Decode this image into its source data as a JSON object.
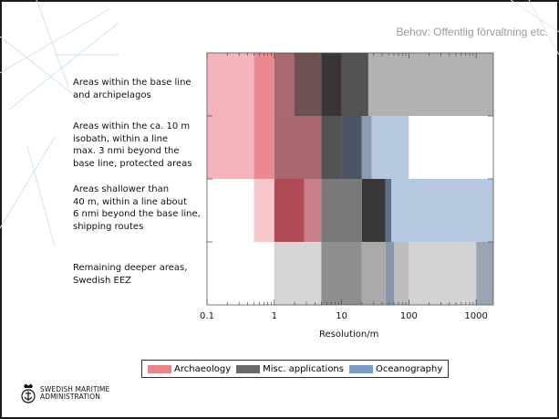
{
  "header": {
    "text": "Behov: Offentlig förvaltning etc."
  },
  "chart_data": {
    "type": "bar",
    "orientation": "horizontal-range",
    "x_scale": "log",
    "xlim": [
      0.1,
      1800
    ],
    "xlabel": "Resolution/m",
    "x_ticks": [
      0.1,
      1,
      10,
      100,
      1000
    ],
    "x_tick_labels": [
      "0.1",
      "1",
      "10",
      "100",
      "1000"
    ],
    "categories": [
      "Areas within the base line\nand archipelagos",
      "Areas within the ca. 10 m\nisobath, within a line\nmax. 3 nmi beyond the\nbase line, protected areas",
      "Areas shallower than\n40 m, within a line about\n6 nmi beyond the base line,\nshipping routes",
      "Remaining deeper areas,\nSwedish EEZ"
    ],
    "legend": [
      {
        "label": "Archaeology",
        "color": "#e8848c"
      },
      {
        "label": "Misc. applications",
        "color": "#6a6a6a"
      },
      {
        "label": "Oceanography",
        "color": "#7d9cc3"
      }
    ],
    "rows": [
      [
        {
          "from": 0.1,
          "to": 1800,
          "color": "#fdeff1"
        },
        {
          "from": 0.1,
          "to": 0.5,
          "color": "#f4b4bb"
        },
        {
          "from": 0.5,
          "to": 1,
          "color": "#ec8890"
        },
        {
          "from": 1,
          "to": 2,
          "color": "#a66a70"
        },
        {
          "from": 2,
          "to": 5,
          "color": "#6e5052"
        },
        {
          "from": 5,
          "to": 10,
          "color": "#3a3434"
        },
        {
          "from": 10,
          "to": 25,
          "color": "#525252"
        },
        {
          "from": 25,
          "to": 1800,
          "color": "#bdbdbd"
        },
        {
          "from": 25,
          "to": 1800,
          "color": "#b2b2b2"
        }
      ],
      [
        {
          "from": 0.1,
          "to": 0.5,
          "color": "#f4b4bb"
        },
        {
          "from": 0.5,
          "to": 1,
          "color": "#ec8890"
        },
        {
          "from": 1,
          "to": 5,
          "color": "#a8686e"
        },
        {
          "from": 5,
          "to": 10,
          "color": "#535353"
        },
        {
          "from": 10,
          "to": 20,
          "color": "#4b5563"
        },
        {
          "from": 20,
          "to": 28,
          "color": "#8a9bb2"
        },
        {
          "from": 28,
          "to": 100,
          "color": "#b5c8e0"
        },
        {
          "from": 100,
          "to": 1800,
          "color": "#ffffff"
        }
      ],
      [
        {
          "from": 0.1,
          "to": 0.5,
          "color": "#ffffff"
        },
        {
          "from": 0.5,
          "to": 1,
          "color": "#f7c7cc"
        },
        {
          "from": 1,
          "to": 2.8,
          "color": "#b04a54"
        },
        {
          "from": 2.8,
          "to": 5,
          "color": "#c98088"
        },
        {
          "from": 5,
          "to": 20,
          "color": "#7a7a7a"
        },
        {
          "from": 20,
          "to": 45,
          "color": "#383838"
        },
        {
          "from": 45,
          "to": 55,
          "color": "#5a6f8a"
        },
        {
          "from": 55,
          "to": 1800,
          "color": "#b6c8e0"
        }
      ],
      [
        {
          "from": 0.1,
          "to": 1,
          "color": "#ffffff"
        },
        {
          "from": 1,
          "to": 5,
          "color": "#d6d6d6"
        },
        {
          "from": 5,
          "to": 20,
          "color": "#8e8e8e"
        },
        {
          "from": 20,
          "to": 45,
          "color": "#aaaaaa"
        },
        {
          "from": 45,
          "to": 60,
          "color": "#8798ae"
        },
        {
          "from": 60,
          "to": 100,
          "color": "#bdbdbd"
        },
        {
          "from": 100,
          "to": 1000,
          "color": "#d3d3d3"
        },
        {
          "from": 1000,
          "to": 1800,
          "color": "#9aa5b3"
        }
      ]
    ]
  },
  "logo": {
    "text": "SWEDISH MARITIME\nADMINISTRATION"
  }
}
